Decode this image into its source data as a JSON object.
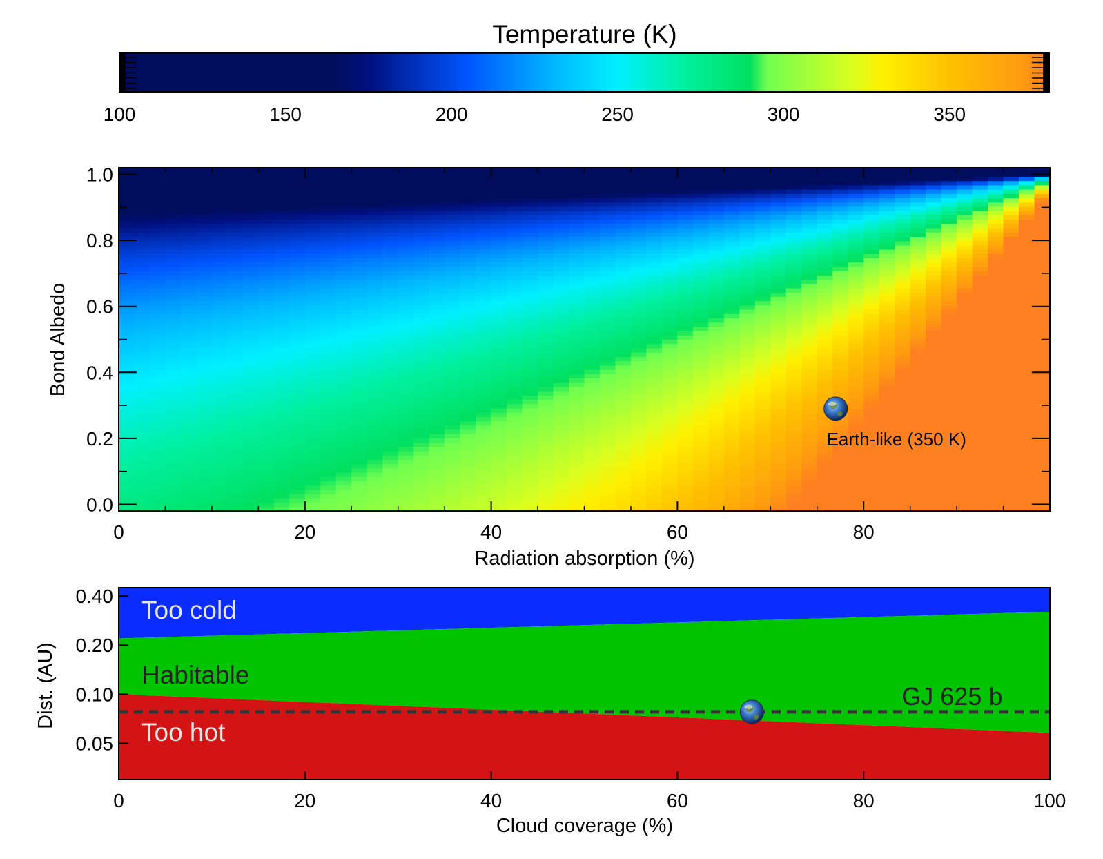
{
  "colorbar": {
    "title": "Temperature (K)",
    "range": [
      100,
      380
    ],
    "ticks": [
      "100",
      "150",
      "200",
      "250",
      "300",
      "350"
    ],
    "tick_values": [
      100,
      150,
      200,
      250,
      300,
      350
    ],
    "stops": [
      {
        "t": 100,
        "color": "#000d5c"
      },
      {
        "t": 165,
        "color": "#000d5c"
      },
      {
        "t": 175,
        "color": "#001080"
      },
      {
        "t": 205,
        "color": "#0055ff"
      },
      {
        "t": 230,
        "color": "#00b4ff"
      },
      {
        "t": 250,
        "color": "#00f0ff"
      },
      {
        "t": 270,
        "color": "#00f0a0"
      },
      {
        "t": 290,
        "color": "#00e060"
      },
      {
        "t": 295,
        "color": "#70ff50"
      },
      {
        "t": 320,
        "color": "#d8ff20"
      },
      {
        "t": 330,
        "color": "#fff000"
      },
      {
        "t": 350,
        "color": "#ffc000"
      },
      {
        "t": 372,
        "color": "#ff9a10"
      },
      {
        "t": 380,
        "color": "#ff8020"
      }
    ]
  },
  "chart_data": [
    {
      "type": "heatmap",
      "xlabel": "Radiation absorption (%)",
      "ylabel": "Bond Albedo",
      "xlim": [
        0,
        100
      ],
      "ylim": [
        -0.02,
        1.02
      ],
      "xticks": [
        "0",
        "20",
        "40",
        "60",
        "80"
      ],
      "xtick_values": [
        0,
        20,
        40,
        60,
        80
      ],
      "yticks": [
        "0.0",
        "0.2",
        "0.4",
        "0.6",
        "0.8",
        "1.0"
      ],
      "ytick_values": [
        0.0,
        0.2,
        0.4,
        0.6,
        0.8,
        1.0
      ],
      "z_unit": "K",
      "annotation": {
        "label": "Earth-like (350 K)",
        "x": 77,
        "y": 0.29
      }
    },
    {
      "type": "area",
      "xlabel": "Cloud coverage (%)",
      "ylabel": "Dist. (AU)",
      "y_scale": "log",
      "xlim": [
        0,
        100
      ],
      "ylim": [
        0.03,
        0.45
      ],
      "xticks": [
        "0",
        "20",
        "40",
        "60",
        "80",
        "100"
      ],
      "xtick_values": [
        0,
        20,
        40,
        60,
        80,
        100
      ],
      "yticks": [
        "0.05",
        "0.10",
        "0.20",
        "0.40"
      ],
      "ytick_values": [
        0.05,
        0.1,
        0.2,
        0.4
      ],
      "regions": [
        {
          "label": "Too cold",
          "color": "#0a2cff"
        },
        {
          "label": "Habitable",
          "color": "#00c400"
        },
        {
          "label": "Too hot",
          "color": "#d41414"
        }
      ],
      "boundaries": {
        "x": [
          0,
          100
        ],
        "inner_edge": [
          0.1,
          0.058
        ],
        "outer_edge": [
          0.22,
          0.32
        ]
      },
      "reference_line": {
        "label": "GJ 625 b",
        "y": 0.078
      },
      "marker": {
        "x": 68,
        "y": 0.078
      }
    }
  ]
}
